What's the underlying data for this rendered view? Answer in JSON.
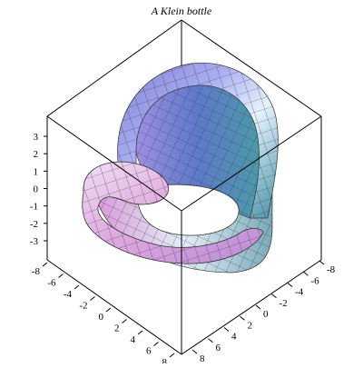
{
  "plot": {
    "title": "A Klein bottle",
    "type": "surface3d",
    "z_axis_ticks": [
      "3",
      "2",
      "1",
      "0",
      "-1",
      "-2",
      "-3"
    ],
    "left_axis_ticks": [
      "-8",
      "-6",
      "-4",
      "-2",
      "0",
      "2",
      "4",
      "6",
      "8"
    ],
    "right_axis_ticks": [
      "8",
      "6",
      "4",
      "2",
      "0",
      "-2",
      "-4",
      "-6",
      "-8"
    ],
    "colors": {
      "surface_light": "#eef6ff",
      "surface_violet": "#9d8fe0",
      "surface_pink": "#e7b6e6",
      "surface_teal": "#62a6b8",
      "grid": "#2b2b2b",
      "box": "#000000"
    }
  }
}
